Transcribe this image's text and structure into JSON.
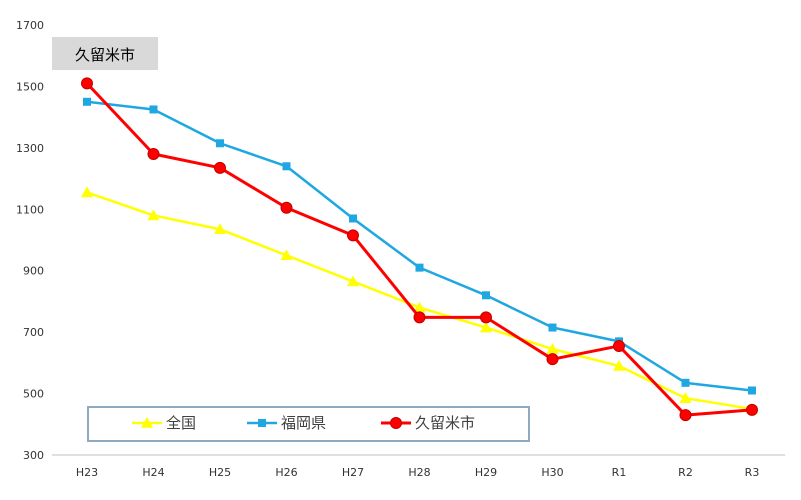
{
  "chart_data": {
    "type": "line",
    "title": "久留米市",
    "xlabel": "",
    "ylabel": "",
    "categories": [
      "H23",
      "H24",
      "H25",
      "H26",
      "H27",
      "H28",
      "H29",
      "H30",
      "R1",
      "R2",
      "R3"
    ],
    "ylim": [
      300,
      1700
    ],
    "yticks": [
      300,
      500,
      700,
      900,
      1100,
      1300,
      1500,
      1700
    ],
    "grid": false,
    "legend": "bottom-left",
    "series": [
      {
        "name": "全国",
        "color": "#ffff00",
        "marker": "triangle",
        "values": [
          1155,
          1080,
          1035,
          950,
          865,
          780,
          715,
          645,
          590,
          485,
          450
        ]
      },
      {
        "name": "福岡県",
        "color": "#1ea7e1",
        "marker": "square",
        "values": [
          1450,
          1425,
          1315,
          1240,
          1070,
          910,
          820,
          715,
          670,
          535,
          510
        ]
      },
      {
        "name": "久留米市",
        "color": "#ff0000",
        "marker": "circle",
        "values": [
          1510,
          1280,
          1235,
          1105,
          1015,
          748,
          748,
          612,
          655,
          430,
          447
        ]
      }
    ]
  }
}
